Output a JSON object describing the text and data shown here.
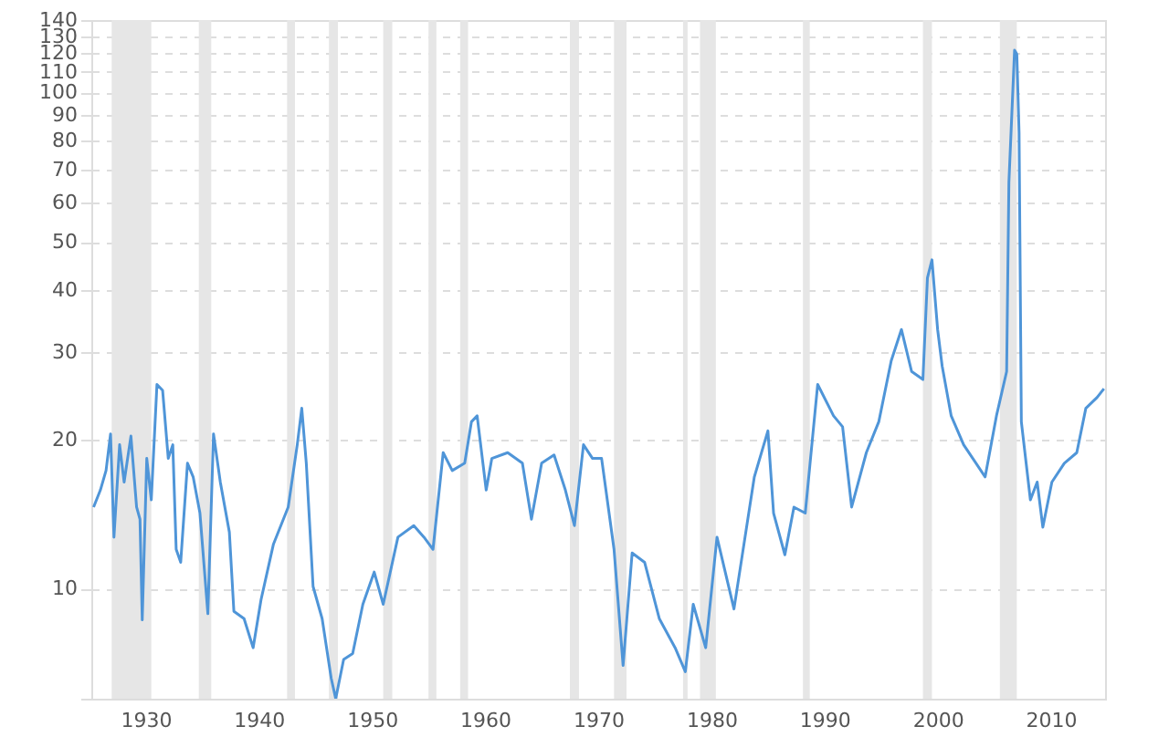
{
  "chart_data": {
    "type": "line",
    "log": true,
    "grid": "y",
    "line_style": "solid",
    "marker": "none",
    "xlim": [
      1925.2,
      2014.8
    ],
    "xticks": [
      1930,
      1940,
      1950,
      1960,
      1970,
      1980,
      1990,
      2000,
      2010
    ],
    "ylim": [
      6,
      140
    ],
    "yticks": [
      {
        "value": 6,
        "label": null
      },
      10,
      20,
      30,
      40,
      50,
      60,
      70,
      80,
      90,
      100,
      110,
      120,
      130,
      140
    ],
    "x": [
      1925.4,
      1926.0,
      1926.5,
      1926.9,
      1927.2,
      1927.7,
      1928.1,
      1928.7,
      1929.2,
      1929.5,
      1929.7,
      1930.1,
      1930.5,
      1931.0,
      1931.5,
      1932.0,
      1932.4,
      1932.7,
      1933.1,
      1933.7,
      1934.2,
      1934.8,
      1935.5,
      1936.0,
      1936.6,
      1937.4,
      1937.8,
      1938.7,
      1939.5,
      1940.2,
      1941.3,
      1942.6,
      1943.4,
      1943.8,
      1944.2,
      1944.8,
      1945.6,
      1946.4,
      1946.8,
      1947.5,
      1948.3,
      1949.2,
      1950.2,
      1951.0,
      1952.3,
      1953.7,
      1954.6,
      1955.4,
      1956.3,
      1957.1,
      1958.2,
      1958.8,
      1959.3,
      1960.1,
      1960.6,
      1962.0,
      1963.3,
      1964.1,
      1965.0,
      1966.1,
      1967.1,
      1967.9,
      1968.7,
      1969.5,
      1970.3,
      1971.4,
      1972.2,
      1973.0,
      1974.1,
      1975.4,
      1976.8,
      1977.7,
      1978.4,
      1979.5,
      1980.5,
      1982.0,
      1983.8,
      1985.0,
      1985.5,
      1986.5,
      1987.3,
      1988.3,
      1989.4,
      1990.8,
      1991.6,
      1992.4,
      1993.7,
      1994.8,
      1995.9,
      1996.8,
      1997.7,
      1998.7,
      1999.1,
      1999.5,
      2000.0,
      2000.4,
      2001.2,
      2002.3,
      2004.2,
      2005.2,
      2006.1,
      2006.3,
      2006.8,
      2007.0,
      2007.2,
      2007.4,
      2008.2,
      2008.8,
      2009.3,
      2010.1,
      2011.2,
      2012.3,
      2013.1,
      2014.1,
      2014.7
    ],
    "series": [
      {
        "color": "#4f95d8",
        "values": [
          14.6,
          15.8,
          17.3,
          20.5,
          12.7,
          19.5,
          16.4,
          20.3,
          14.6,
          13.8,
          8.65,
          18.3,
          15.1,
          25.8,
          25.1,
          18.3,
          19.5,
          12.0,
          11.3,
          17.9,
          16.8,
          14.2,
          8.9,
          20.5,
          16.4,
          13.0,
          9.0,
          8.7,
          7.6,
          9.5,
          12.3,
          14.6,
          19.5,
          23.1,
          17.9,
          10.1,
          8.7,
          6.6,
          6.0,
          7.2,
          7.4,
          9.3,
          10.8,
          9.3,
          12.7,
          13.4,
          12.7,
          12.0,
          18.8,
          17.3,
          17.9,
          21.7,
          22.3,
          15.8,
          18.3,
          18.8,
          17.9,
          13.8,
          17.9,
          18.6,
          15.8,
          13.4,
          19.5,
          18.3,
          18.3,
          12.0,
          7.0,
          11.8,
          11.3,
          8.7,
          7.6,
          6.8,
          9.3,
          7.6,
          12.7,
          9.1,
          16.8,
          20.8,
          14.2,
          11.7,
          14.6,
          14.2,
          25.8,
          22.3,
          21.2,
          14.6,
          18.8,
          21.7,
          28.8,
          33.3,
          27.4,
          26.4,
          42.3,
          46.0,
          33.3,
          28.1,
          22.3,
          19.5,
          16.8,
          22.3,
          27.4,
          65.9,
          121.7,
          119.6,
          83.0,
          21.7,
          15.1,
          16.4,
          13.3,
          16.4,
          17.9,
          18.8,
          23.1,
          24.3,
          25.3
        ]
      }
    ],
    "bands": [
      {
        "axis": "x",
        "from": 1927.0,
        "to": 1930.5,
        "color": "#e6e6e6"
      },
      {
        "axis": "x",
        "from": 1934.7,
        "to": 1935.8,
        "color": "#e6e6e6"
      },
      {
        "axis": "x",
        "from": 1942.5,
        "to": 1943.2,
        "color": "#e6e6e6"
      },
      {
        "axis": "x",
        "from": 1946.2,
        "to": 1947.0,
        "color": "#e6e6e6"
      },
      {
        "axis": "x",
        "from": 1951.0,
        "to": 1951.8,
        "color": "#e6e6e6"
      },
      {
        "axis": "x",
        "from": 1955.0,
        "to": 1955.7,
        "color": "#e6e6e6"
      },
      {
        "axis": "x",
        "from": 1957.8,
        "to": 1958.5,
        "color": "#e6e6e6"
      },
      {
        "axis": "x",
        "from": 1967.5,
        "to": 1968.3,
        "color": "#e6e6e6"
      },
      {
        "axis": "x",
        "from": 1971.4,
        "to": 1972.5,
        "color": "#e6e6e6"
      },
      {
        "axis": "x",
        "from": 1977.5,
        "to": 1977.9,
        "color": "#e6e6e6"
      },
      {
        "axis": "x",
        "from": 1979.0,
        "to": 1980.4,
        "color": "#e6e6e6"
      },
      {
        "axis": "x",
        "from": 1988.1,
        "to": 1988.7,
        "color": "#e6e6e6"
      },
      {
        "axis": "x",
        "from": 1998.7,
        "to": 1999.5,
        "color": "#e6e6e6"
      },
      {
        "axis": "x",
        "from": 2005.5,
        "to": 2007.0,
        "color": "#e6e6e6"
      }
    ]
  }
}
